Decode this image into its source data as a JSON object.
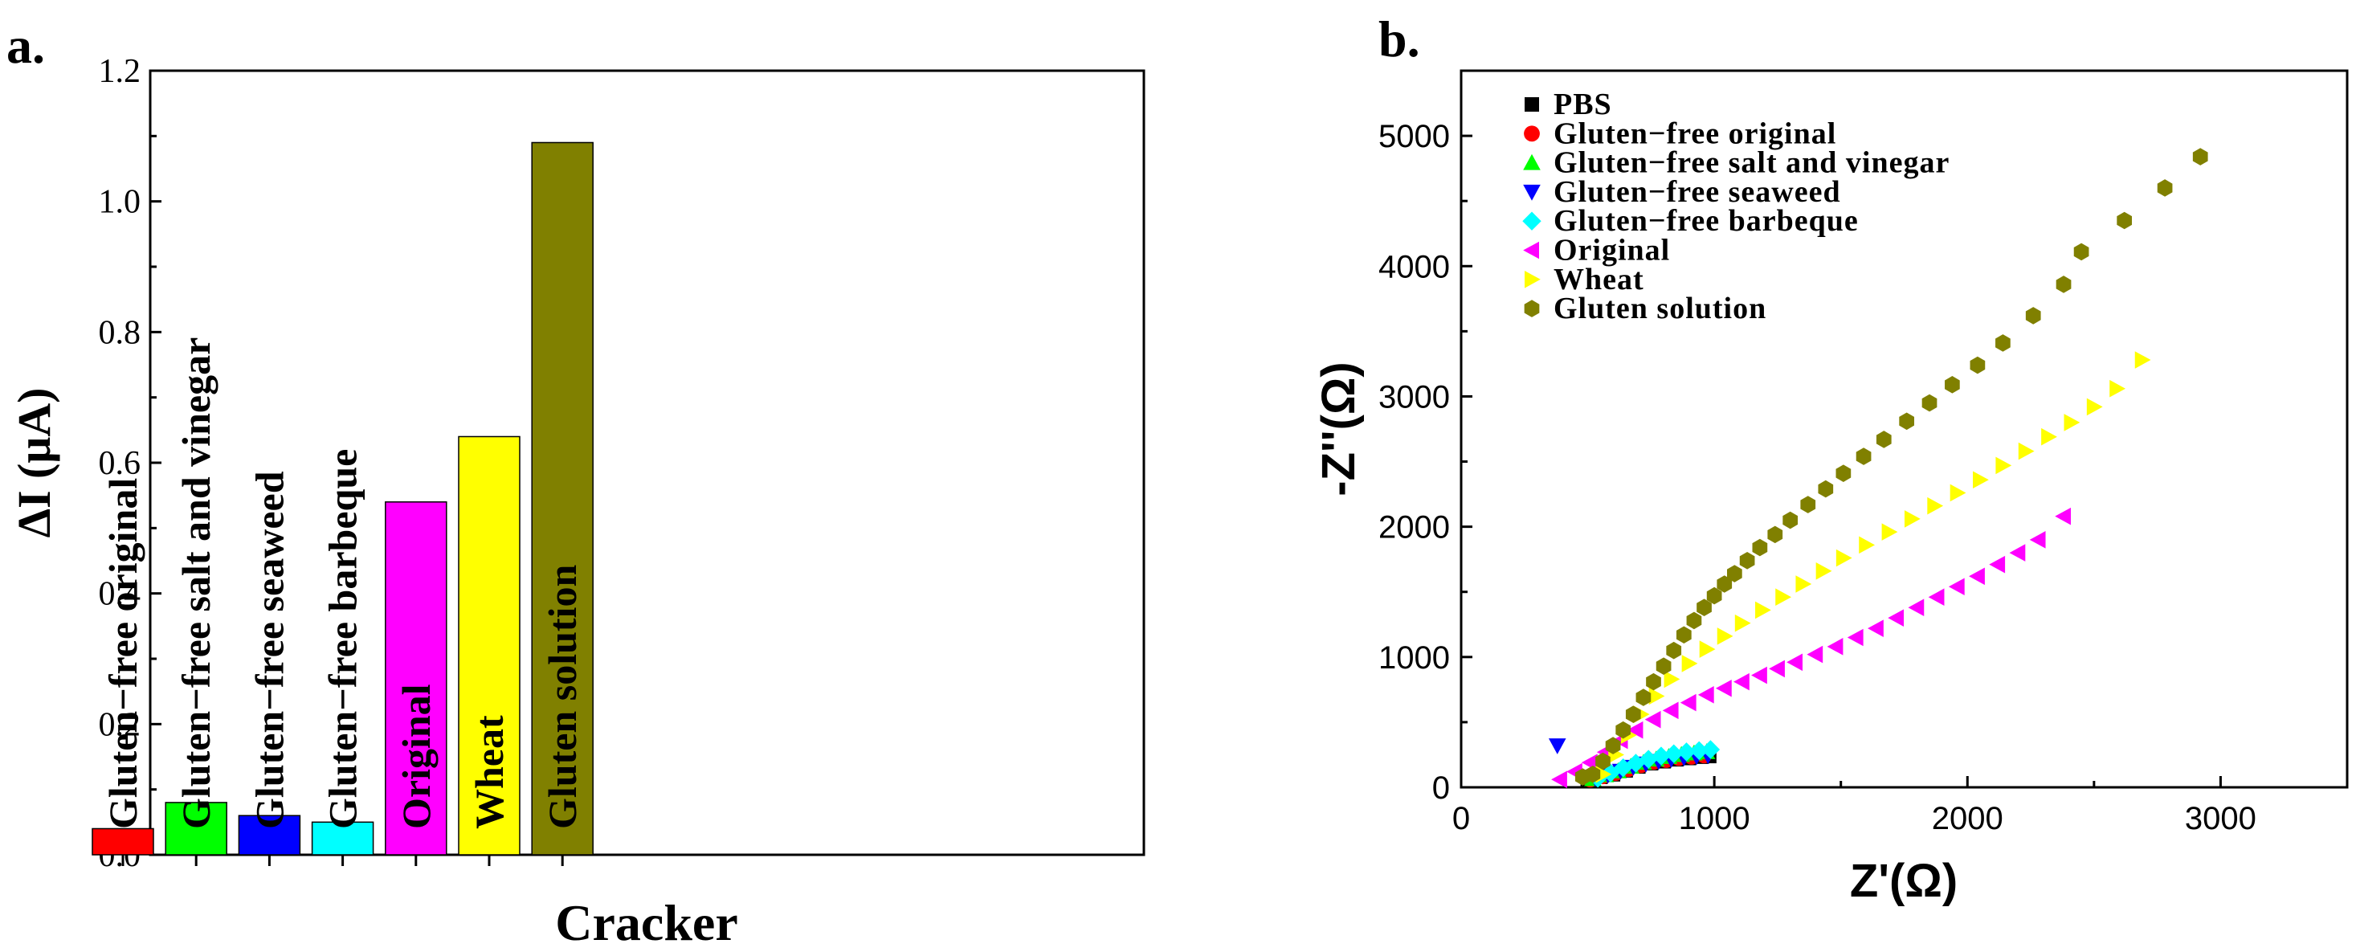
{
  "panels": {
    "a_label": "a.",
    "b_label": "b."
  },
  "chart_data": [
    {
      "panel": "a",
      "type": "bar",
      "title": "",
      "xlabel": "Cracker",
      "ylabel": "ΔI (μA)",
      "ylim": [
        0.0,
        1.2
      ],
      "yticks": [
        "0.0",
        "0.2",
        "0.4",
        "0.6",
        "0.8",
        "1.0",
        "1.2"
      ],
      "categories": [
        "Gluten−free original",
        "Gluten−free salt and vinegar",
        "Gluten−free seaweed",
        "Gluten−free barbeque",
        "Original",
        "Wheat",
        "Gluten solution"
      ],
      "values": [
        0.04,
        0.08,
        0.06,
        0.05,
        0.54,
        0.64,
        1.09
      ],
      "colors": [
        "#ff0000",
        "#00ff00",
        "#0000ff",
        "#00ffff",
        "#ff00ff",
        "#ffff00",
        "#808000"
      ]
    },
    {
      "panel": "b",
      "type": "scatter",
      "title": "",
      "xlabel": "Z'(Ω)",
      "ylabel": "-Z''(Ω)",
      "xlim": [
        0,
        3500
      ],
      "ylim": [
        0,
        5500
      ],
      "xticks": [
        "0",
        "1000",
        "2000",
        "3000"
      ],
      "yticks": [
        "0",
        "1000",
        "2000",
        "3000",
        "4000",
        "5000"
      ],
      "legend_position": "top-left",
      "series": [
        {
          "name": "PBS",
          "color": "#000000",
          "marker": "square",
          "x": [
            500,
            550,
            600,
            650,
            700,
            750,
            800,
            850,
            900,
            950,
            980
          ],
          "y": [
            60,
            80,
            100,
            130,
            160,
            185,
            200,
            215,
            225,
            235,
            240
          ]
        },
        {
          "name": "Gluten−free original",
          "color": "#ff0000",
          "marker": "circle",
          "x": [
            510,
            560,
            610,
            660,
            710,
            760,
            810,
            860,
            910,
            960
          ],
          "y": [
            60,
            85,
            110,
            140,
            170,
            195,
            210,
            225,
            235,
            245
          ]
        },
        {
          "name": "Gluten−free salt and vinegar",
          "color": "#00ff00",
          "marker": "triangle-up",
          "x": [
            520,
            570,
            620,
            670,
            720,
            770,
            820,
            870,
            920,
            970
          ],
          "y": [
            65,
            95,
            125,
            160,
            190,
            215,
            235,
            250,
            262,
            272
          ]
        },
        {
          "name": "Gluten−free seaweed",
          "color": "#0000ff",
          "marker": "triangle-down",
          "x": [
            380,
            530,
            580,
            630,
            680,
            730,
            780,
            830,
            880,
            930,
            975
          ],
          "y": [
            320,
            70,
            95,
            125,
            155,
            180,
            200,
            215,
            228,
            238,
            245
          ]
        },
        {
          "name": "Gluten−free barbeque",
          "color": "#00ffff",
          "marker": "diamond",
          "x": [
            540,
            590,
            640,
            690,
            740,
            790,
            840,
            890,
            940,
            985
          ],
          "y": [
            70,
            110,
            150,
            185,
            215,
            240,
            258,
            272,
            282,
            290
          ]
        },
        {
          "name": "Original",
          "color": "#ff00ff",
          "marker": "triangle-left",
          "x": [
            390,
            450,
            510,
            570,
            630,
            690,
            760,
            830,
            900,
            970,
            1040,
            1110,
            1180,
            1250,
            1320,
            1400,
            1480,
            1560,
            1640,
            1720,
            1800,
            1880,
            1960,
            2040,
            2120,
            2200,
            2280,
            2380
          ],
          "y": [
            60,
            120,
            190,
            270,
            360,
            440,
            520,
            590,
            650,
            710,
            760,
            810,
            860,
            910,
            960,
            1020,
            1080,
            1150,
            1220,
            1300,
            1380,
            1460,
            1540,
            1620,
            1710,
            1800,
            1900,
            2080
          ]
        },
        {
          "name": "Wheat",
          "color": "#ffff00",
          "marker": "triangle-right",
          "x": [
            560,
            610,
            660,
            710,
            770,
            830,
            900,
            970,
            1040,
            1110,
            1190,
            1270,
            1350,
            1430,
            1510,
            1600,
            1690,
            1780,
            1870,
            1960,
            2050,
            2140,
            2230,
            2320,
            2410,
            2500,
            2590,
            2690
          ],
          "y": [
            100,
            250,
            400,
            560,
            700,
            830,
            950,
            1060,
            1160,
            1260,
            1360,
            1460,
            1560,
            1660,
            1760,
            1860,
            1960,
            2060,
            2160,
            2260,
            2360,
            2470,
            2580,
            2690,
            2800,
            2920,
            3060,
            3280
          ]
        },
        {
          "name": "Gluten solution",
          "color": "#808000",
          "marker": "hexagon",
          "x": [
            480,
            520,
            560,
            600,
            640,
            680,
            720,
            760,
            800,
            840,
            880,
            920,
            960,
            1000,
            1040,
            1080,
            1130,
            1180,
            1240,
            1300,
            1370,
            1440,
            1510,
            1590,
            1670,
            1760,
            1850,
            1940,
            2040,
            2140,
            2260,
            2380,
            2450,
            2620,
            2780,
            2920
          ],
          "y": [
            80,
            100,
            200,
            320,
            440,
            560,
            690,
            810,
            930,
            1050,
            1170,
            1280,
            1380,
            1470,
            1560,
            1640,
            1740,
            1840,
            1940,
            2050,
            2170,
            2290,
            2410,
            2540,
            2670,
            2810,
            2950,
            3090,
            3240,
            3410,
            3620,
            3860,
            4110,
            4350,
            4600,
            4840
          ]
        }
      ]
    }
  ]
}
